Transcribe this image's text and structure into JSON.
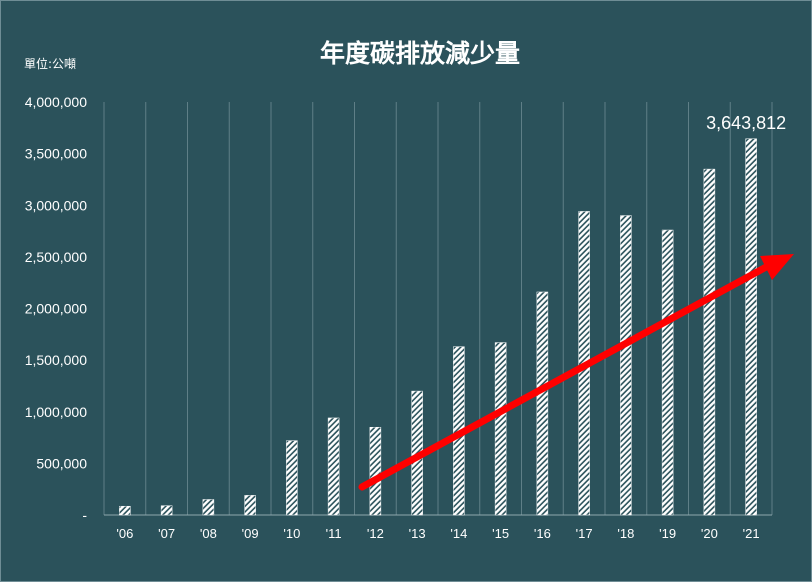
{
  "chart_data": {
    "type": "bar",
    "title": "年度碳排放減少量",
    "unit_label": "單位:公噸",
    "categories": [
      "'06",
      "'07",
      "'08",
      "'09",
      "'10",
      "'11",
      "'12",
      "'13",
      "'14",
      "'15",
      "'16",
      "'17",
      "'18",
      "'19",
      "'20",
      "'21"
    ],
    "values": [
      85000,
      90000,
      150000,
      190000,
      720000,
      940000,
      850000,
      1200000,
      1630000,
      1670000,
      2160000,
      2940000,
      2900000,
      2760000,
      3350000,
      3643812
    ],
    "ylim": [
      0,
      4000000
    ],
    "yticks": [
      "-",
      "500,000",
      "1,000,000",
      "1,500,000",
      "2,000,000",
      "2,500,000",
      "3,000,000",
      "3,500,000",
      "4,000,000"
    ],
    "data_labels": [
      {
        "category": "'21",
        "text": "3,643,812"
      }
    ],
    "annotations": [
      {
        "type": "trend-arrow",
        "color": "#ff0000",
        "direction": "upward"
      }
    ],
    "grid": "vertical",
    "legend": "none",
    "colors": {
      "background": "#2b525b",
      "bar_fill": "hatched white",
      "grid": "#6f8d95",
      "text": "#ffffff",
      "arrow": "#ff0000"
    }
  }
}
